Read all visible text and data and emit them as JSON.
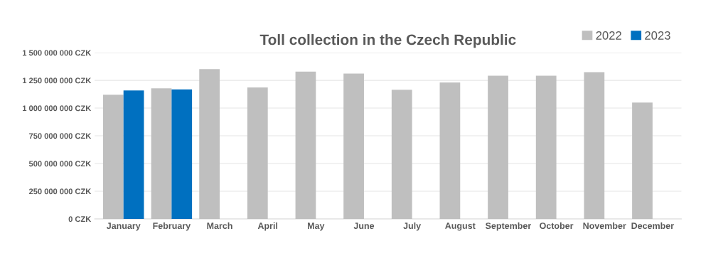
{
  "chart_data": {
    "type": "bar",
    "title": "Toll collection in the Czech Republic",
    "categories": [
      "January",
      "February",
      "March",
      "April",
      "May",
      "June",
      "July",
      "August",
      "September",
      "October",
      "November",
      "December"
    ],
    "series": [
      {
        "name": "2022",
        "color": "#bfbfbf",
        "values": [
          1120000000,
          1178000000,
          1351000000,
          1186000000,
          1329000000,
          1312000000,
          1165000000,
          1231000000,
          1293000000,
          1293000000,
          1325000000,
          1050000000
        ]
      },
      {
        "name": "2023",
        "color": "#0070c0",
        "values": [
          1159000000,
          1169000000,
          null,
          null,
          null,
          null,
          null,
          null,
          null,
          null,
          null,
          null
        ]
      }
    ],
    "ylim": [
      0,
      1500000000
    ],
    "yticks": [
      {
        "value": 0,
        "label": "0 CZK"
      },
      {
        "value": 250000000,
        "label": "250 000 000 CZK"
      },
      {
        "value": 500000000,
        "label": "500 000 000 CZK"
      },
      {
        "value": 750000000,
        "label": "750 000 000 CZK"
      },
      {
        "value": 1000000000,
        "label": "1 000 000 000 CZK"
      },
      {
        "value": 1250000000,
        "label": "1 250 000 000 CZK"
      },
      {
        "value": 1500000000,
        "label": "1 500 000 000 CZK"
      }
    ],
    "grid": "y",
    "legend": "top right"
  }
}
